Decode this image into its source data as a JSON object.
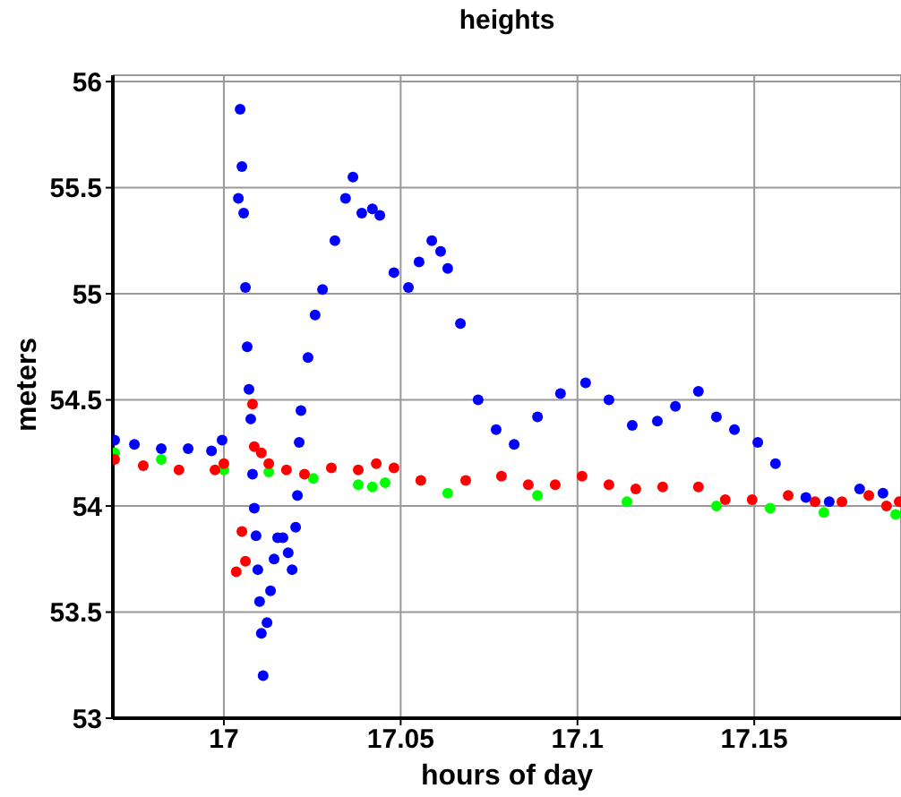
{
  "chart_data": {
    "type": "scatter",
    "title": "heights",
    "xlabel": "hours of day",
    "ylabel": "meters",
    "xlim": [
      16.9686,
      17.1915
    ],
    "xticks": [
      17,
      17.05,
      17.1,
      17.15
    ],
    "ylim": [
      53,
      56.03
    ],
    "yticks": [
      53,
      53.5,
      54,
      54.5,
      55,
      55.5,
      56
    ],
    "grid": true,
    "legend": false,
    "marker": "circle",
    "series": [
      {
        "color": "#0000ff",
        "x": [
          16.9691,
          16.9747,
          16.9823,
          16.9899,
          16.9965,
          16.9995,
          17.0041,
          17.0046,
          17.0051,
          17.0056,
          17.0061,
          17.0066,
          17.0071,
          17.0076,
          17.0081,
          17.0086,
          17.0091,
          17.0096,
          17.0101,
          17.0106,
          17.0111,
          17.0122,
          17.0132,
          17.0142,
          17.0152,
          17.0167,
          17.0182,
          17.0193,
          17.0203,
          17.0208,
          17.0213,
          17.0218,
          17.0238,
          17.0258,
          17.0279,
          17.0314,
          17.0344,
          17.0365,
          17.039,
          17.042,
          17.0441,
          17.0481,
          17.0522,
          17.0552,
          17.0588,
          17.0613,
          17.0633,
          17.0669,
          17.0719,
          17.077,
          17.0821,
          17.0887,
          17.0952,
          17.1023,
          17.1089,
          17.1155,
          17.1226,
          17.1277,
          17.1342,
          17.1393,
          17.1444,
          17.151,
          17.156,
          17.1646,
          17.1712,
          17.1798,
          17.1864
        ],
        "values": [
          54.31,
          54.29,
          54.27,
          54.27,
          54.26,
          54.31,
          55.45,
          55.87,
          55.6,
          55.38,
          55.03,
          54.75,
          54.55,
          54.41,
          54.15,
          53.99,
          53.86,
          53.7,
          53.55,
          53.4,
          53.2,
          53.45,
          53.6,
          53.75,
          53.85,
          53.85,
          53.78,
          53.7,
          53.9,
          54.05,
          54.3,
          54.45,
          54.7,
          54.9,
          55.02,
          55.25,
          55.45,
          55.55,
          55.38,
          55.4,
          55.37,
          55.1,
          55.03,
          55.15,
          55.25,
          55.2,
          55.12,
          54.86,
          54.5,
          54.36,
          54.29,
          54.42,
          54.53,
          54.58,
          54.5,
          54.38,
          54.4,
          54.47,
          54.54,
          54.42,
          54.36,
          54.3,
          54.2,
          54.04,
          54.02,
          54.08,
          54.06
        ]
      },
      {
        "color": "#ff0000",
        "x": [
          16.9691,
          16.9772,
          16.9873,
          16.9975,
          17.0,
          17.0035,
          17.0051,
          17.0061,
          17.0081,
          17.0086,
          17.0106,
          17.0127,
          17.0177,
          17.0228,
          17.0304,
          17.038,
          17.0431,
          17.0481,
          17.0557,
          17.0684,
          17.0785,
          17.0861,
          17.0937,
          17.1013,
          17.1089,
          17.1165,
          17.1241,
          17.1342,
          17.1418,
          17.1494,
          17.1596,
          17.1672,
          17.1748,
          17.1824,
          17.1874,
          17.191
        ],
        "values": [
          54.22,
          54.19,
          54.17,
          54.17,
          54.2,
          53.69,
          53.88,
          53.74,
          54.48,
          54.28,
          54.25,
          54.2,
          54.17,
          54.15,
          54.18,
          54.17,
          54.2,
          54.18,
          54.12,
          54.12,
          54.14,
          54.1,
          54.1,
          54.14,
          54.1,
          54.08,
          54.09,
          54.09,
          54.03,
          54.03,
          54.05,
          54.02,
          54.02,
          54.05,
          54.0,
          54.02
        ]
      },
      {
        "color": "#00ff00",
        "x": [
          16.9691,
          16.9823,
          17.0,
          17.0127,
          17.0253,
          17.038,
          17.042,
          17.0456,
          17.0633,
          17.0887,
          17.114,
          17.1393,
          17.1545,
          17.1697,
          17.19
        ],
        "values": [
          54.25,
          54.22,
          54.17,
          54.16,
          54.13,
          54.1,
          54.09,
          54.11,
          54.06,
          54.05,
          54.02,
          54.0,
          53.99,
          53.97,
          53.96
        ]
      }
    ]
  }
}
